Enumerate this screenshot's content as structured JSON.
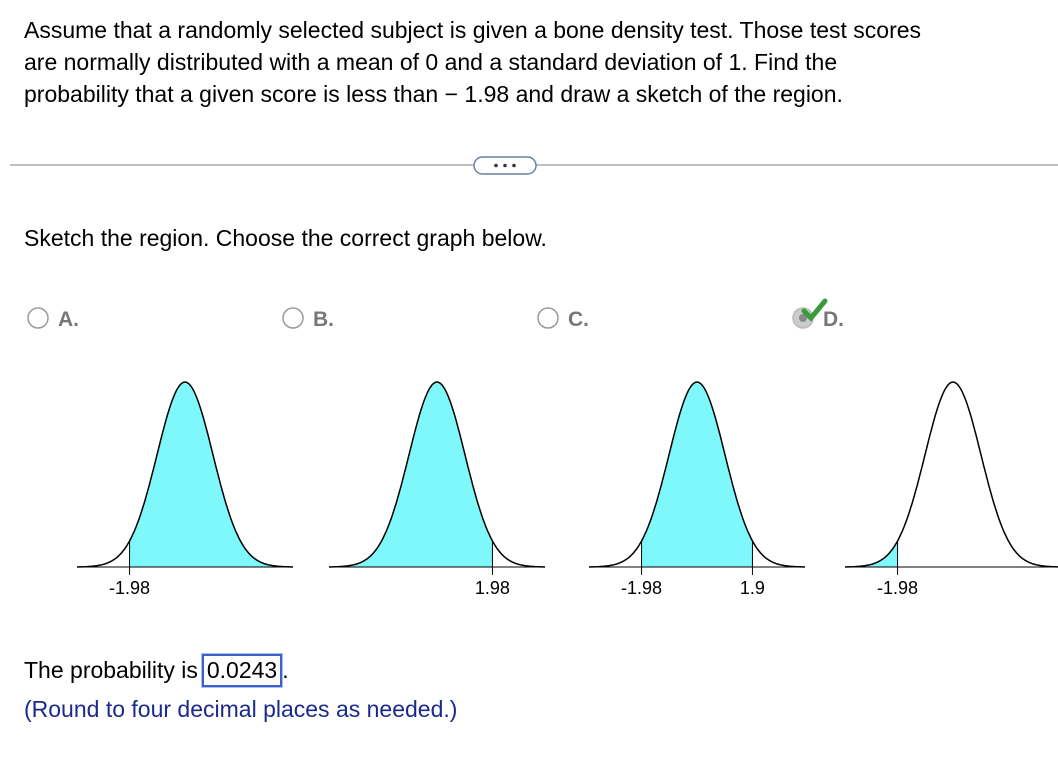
{
  "question": {
    "lines": [
      "Assume that a randomly selected subject is given a bone density test. Those test scores",
      "are normally distributed with a mean of 0 and a standard deviation of 1. Find the",
      "probability that a given score is less than − 1.98 and draw a sketch of the region."
    ]
  },
  "prompt": "Sketch the region. Choose the correct graph below.",
  "options": [
    {
      "label": "A.",
      "ticks": [
        "-1.98"
      ]
    },
    {
      "label": "B.",
      "ticks": [
        "1.98"
      ]
    },
    {
      "label": "C.",
      "ticks": [
        "-1.98",
        "1.9"
      ]
    },
    {
      "label": "D.",
      "ticks": [
        "-1.98"
      ]
    }
  ],
  "answer": {
    "prefix": "The probability is",
    "value": "0.0243",
    "suffix": ".",
    "note": "(Round to four decimal places as needed.)"
  }
}
